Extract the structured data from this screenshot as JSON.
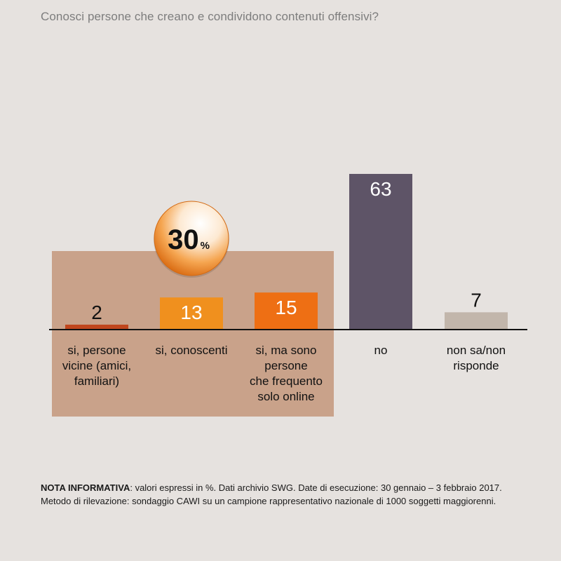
{
  "title": "Conosci persone che creano e condividono contenuti offensivi?",
  "highlight": {
    "value": "30",
    "unit": "%"
  },
  "colors": {
    "background": "#e6e2df",
    "group_box": "#c9a28a",
    "axis": "#111111",
    "bubble_outer": "#e07a1a",
    "bubble_inner": "#ffffff"
  },
  "chart_data": {
    "type": "bar",
    "categories": [
      [
        "si, persone",
        "vicine (amici,",
        "familiari)"
      ],
      [
        "si, conoscenti"
      ],
      [
        "si, ma sono",
        "persone",
        "che frequento",
        "solo online"
      ],
      [
        "no"
      ],
      [
        "non sa/non",
        "risponde"
      ]
    ],
    "values": [
      2,
      13,
      15,
      63,
      7
    ],
    "value_labels": [
      "2",
      "13",
      "15",
      "63",
      "7"
    ],
    "colors": [
      "#c0461d",
      "#f0901e",
      "#ee6f14",
      "#5e5467",
      "#c2b6ab"
    ],
    "label_inside": [
      false,
      true,
      true,
      true,
      false
    ],
    "ylim": [
      0,
      63
    ],
    "grouped_categories": [
      0,
      1,
      2
    ]
  },
  "note": {
    "bold": "NOTA INFORMATIVA",
    "line1": ": valori espressi in %. Dati archivio SWG. Date di esecuzione: 30 gennaio – 3 febbraio 2017.",
    "line2": "Metodo di rilevazione: sondaggio CAWI su un campione rappresentativo nazionale di 1000 soggetti maggiorenni."
  }
}
